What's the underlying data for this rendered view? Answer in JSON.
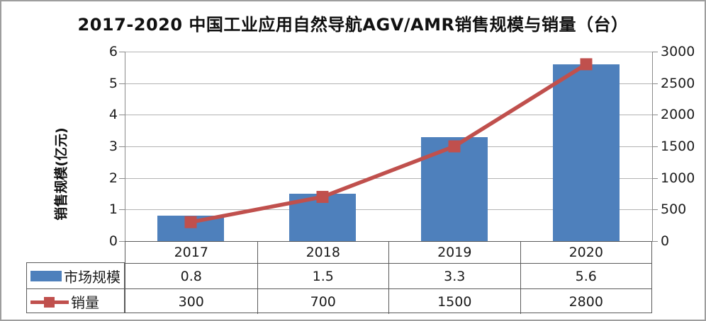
{
  "chart_data": {
    "type": "combo",
    "title": "2017-2020 中国工业应用自然导航AGV/AMR销售规模与销量（台）",
    "categories": [
      "2017",
      "2018",
      "2019",
      "2020"
    ],
    "series": [
      {
        "name": "市场规模",
        "chart_type": "bar",
        "axis": "left",
        "values": [
          0.8,
          1.5,
          3.3,
          5.6
        ],
        "value_labels": [
          "0.8",
          "1.5",
          "3.3",
          "5.6"
        ],
        "color": "#4E80BC"
      },
      {
        "name": "销量",
        "chart_type": "line",
        "marker": "square",
        "axis": "right",
        "values": [
          300,
          700,
          1500,
          2800
        ],
        "value_labels": [
          "300",
          "700",
          "1500",
          "2800"
        ],
        "color": "#C0504D"
      }
    ],
    "left_axis": {
      "label": "销售规模(亿元)",
      "min": 0,
      "max": 6,
      "step": 1,
      "ticks": [
        "0",
        "1",
        "2",
        "3",
        "4",
        "5",
        "6"
      ]
    },
    "right_axis": {
      "label": "",
      "min": 0,
      "max": 3000,
      "step": 500,
      "ticks": [
        "0",
        "500",
        "1000",
        "1500",
        "2000",
        "2500",
        "3000"
      ]
    },
    "grid": true,
    "legend_position": "table-left",
    "colors": {
      "bar": "#4E80BC",
      "line": "#C0504D",
      "gridline": "#B3B3B3",
      "axis": "#8A8A8A",
      "table_border": "#5A5A5A",
      "text": "#111111"
    }
  }
}
